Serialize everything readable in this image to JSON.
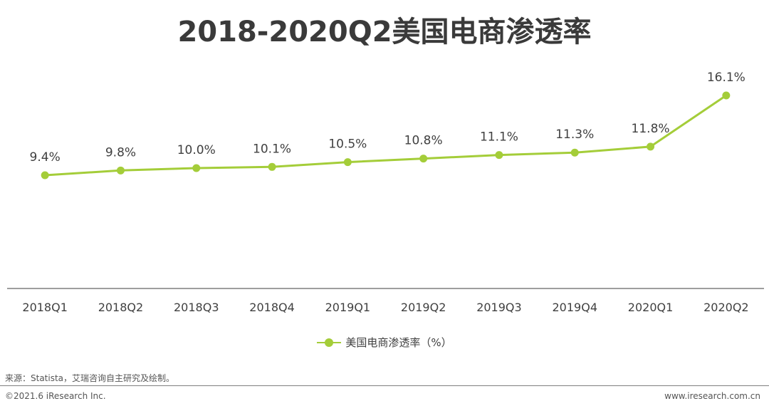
{
  "chart_data": {
    "type": "line",
    "title": "2018-2020Q2美国电商渗透率",
    "categories": [
      "2018Q1",
      "2018Q2",
      "2018Q3",
      "2018Q4",
      "2019Q1",
      "2019Q2",
      "2019Q3",
      "2019Q4",
      "2020Q1",
      "2020Q2"
    ],
    "series": [
      {
        "name": "美国电商渗透率（%）",
        "values": [
          9.4,
          9.8,
          10.0,
          10.1,
          10.5,
          10.8,
          11.1,
          11.3,
          11.8,
          16.1
        ],
        "data_labels": [
          "9.4%",
          "9.8%",
          "10.0%",
          "10.1%",
          "10.5%",
          "10.8%",
          "11.1%",
          "11.3%",
          "11.8%",
          "16.1%"
        ],
        "color": "#a4cd39"
      }
    ],
    "xlabel": "",
    "ylabel": "",
    "ylim": [
      0,
      20
    ],
    "grid": false,
    "y_axis_visible": false,
    "legend": "bottom-center"
  },
  "colors": {
    "series": "#a4cd39",
    "axis": "#7f7f7f",
    "text": "#404040",
    "title": "#3a3a3a"
  },
  "footer": {
    "source": "来源：Statista，艾瑞咨询自主研究及绘制。",
    "copyright": "©2021.6 iResearch Inc.",
    "website": "www.iresearch.com.cn"
  }
}
